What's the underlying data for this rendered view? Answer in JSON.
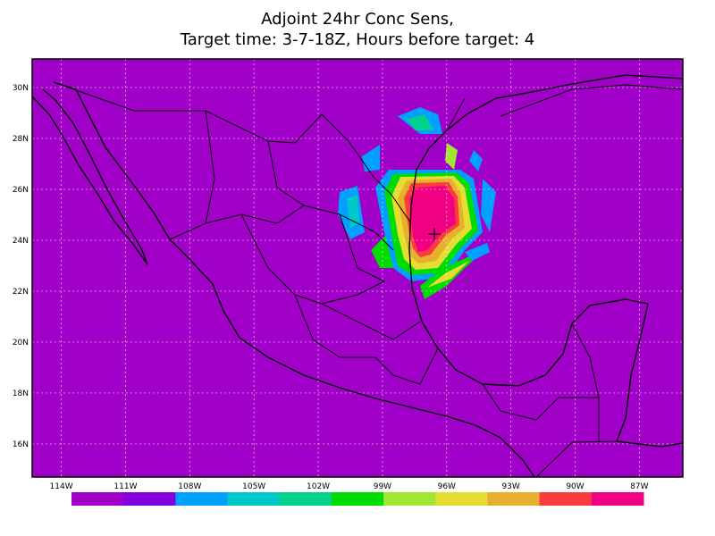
{
  "title": [
    "Adjoint 24hr Conc Sens,",
    "Target time: 3-7-18Z, Hours before target: 4"
  ],
  "map": {
    "xlim": [
      -115.36,
      -84.97
    ],
    "ylim": [
      14.7,
      31.12
    ],
    "xticks": [
      {
        "value": -114,
        "label": "114W"
      },
      {
        "value": -111,
        "label": "111W"
      },
      {
        "value": -108,
        "label": "108W"
      },
      {
        "value": -105,
        "label": "105W"
      },
      {
        "value": -102,
        "label": "102W"
      },
      {
        "value": -99,
        "label": "99W"
      },
      {
        "value": -96,
        "label": "96W"
      },
      {
        "value": -93,
        "label": "93W"
      },
      {
        "value": -90,
        "label": "90W"
      },
      {
        "value": -87,
        "label": "87W"
      }
    ],
    "yticks": [
      {
        "value": 16,
        "label": "16N"
      },
      {
        "value": 18,
        "label": "18N"
      },
      {
        "value": 20,
        "label": "20N"
      },
      {
        "value": 22,
        "label": "22N"
      },
      {
        "value": 24,
        "label": "24N"
      },
      {
        "value": 26,
        "label": "26N"
      },
      {
        "value": 28,
        "label": "28N"
      },
      {
        "value": 30,
        "label": "30N"
      }
    ],
    "grid": true,
    "background": "#a000c8"
  },
  "colorbar": [
    "#a000c8",
    "#8200dc",
    "#00a0ff",
    "#00c8c8",
    "#00d28c",
    "#00dc00",
    "#a0e632",
    "#e6dc32",
    "#e6af2d",
    "#fa3c3c",
    "#f00082"
  ]
}
